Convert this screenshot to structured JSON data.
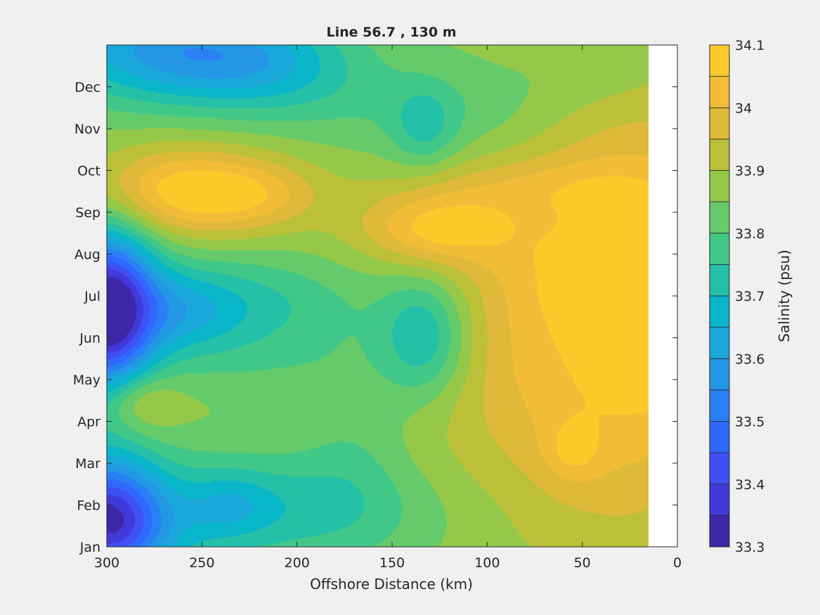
{
  "chart_data": {
    "type": "heatmap",
    "subtype": "filled-contour",
    "title": "Line 56.7 , 130 m",
    "xlabel": "Offshore Distance (km)",
    "ylabel": "",
    "xlim": [
      300,
      0
    ],
    "x_direction": "reversed",
    "xticks": [
      300,
      250,
      200,
      150,
      100,
      50,
      0
    ],
    "xtick_labels": [
      "300",
      "250",
      "200",
      "150",
      "100",
      "50",
      "0"
    ],
    "ylim": [
      1,
      13
    ],
    "yticks": [
      1,
      2,
      3,
      4,
      5,
      6,
      7,
      8,
      9,
      10,
      11,
      12
    ],
    "ytick_labels": [
      "Jan",
      "Feb",
      "Mar",
      "Apr",
      "May",
      "Jun",
      "Jul",
      "Aug",
      "Sep",
      "Oct",
      "Nov",
      "Dec"
    ],
    "data_x_extent": [
      300,
      15
    ],
    "grid": false,
    "colorbar": {
      "label": "Salinity (psu)",
      "levels": [
        33.3,
        33.35,
        33.4,
        33.45,
        33.5,
        33.55,
        33.6,
        33.65,
        33.7,
        33.75,
        33.8,
        33.85,
        33.9,
        33.95,
        34.0,
        34.05,
        34.1
      ],
      "tick_values": [
        33.3,
        33.4,
        33.5,
        33.6,
        33.7,
        33.8,
        33.9,
        34.0,
        34.1
      ],
      "tick_labels": [
        "33.3",
        "33.4",
        "33.5",
        "33.6",
        "33.7",
        "33.8",
        "33.9",
        "34",
        "34.1"
      ],
      "colors": [
        "#3e26a8",
        "#4139d9",
        "#3f50f4",
        "#3068fe",
        "#2b7ff5",
        "#2396e5",
        "#1aa7d9",
        "#09b5c8",
        "#25c0a8",
        "#41c788",
        "#65cb6a",
        "#95c849",
        "#bcc039",
        "#deb93a",
        "#f2bc37",
        "#fbcb2c",
        "#f3e31e"
      ]
    },
    "field": {
      "base": 33.86,
      "features": [
        {
          "x": 300,
          "y": 6.6,
          "sx": 18,
          "sy": 1.5,
          "amp": -0.5
        },
        {
          "x": 258,
          "y": 6.7,
          "sx": 55,
          "sy": 0.85,
          "amp": -0.18
        },
        {
          "x": 255,
          "y": 6.6,
          "sx": 15,
          "sy": 0.6,
          "amp": -0.05
        },
        {
          "x": 300,
          "y": 1.7,
          "sx": 20,
          "sy": 1.0,
          "amp": -0.4
        },
        {
          "x": 235,
          "y": 1.9,
          "sx": 70,
          "sy": 0.95,
          "amp": -0.16
        },
        {
          "x": 235,
          "y": 2.0,
          "sx": 15,
          "sy": 0.5,
          "amp": -0.07
        },
        {
          "x": 290,
          "y": 1.0,
          "sx": 30,
          "sy": 0.6,
          "amp": -0.06
        },
        {
          "x": 270,
          "y": 12.9,
          "sx": 45,
          "sy": 0.9,
          "amp": -0.26
        },
        {
          "x": 215,
          "y": 12.5,
          "sx": 35,
          "sy": 0.8,
          "amp": -0.14
        },
        {
          "x": 285,
          "y": 4.5,
          "sx": 15,
          "sy": 0.55,
          "amp": 0.13
        },
        {
          "x": 260,
          "y": 9.5,
          "sx": 38,
          "sy": 0.75,
          "amp": 0.22
        },
        {
          "x": 222,
          "y": 9.4,
          "sx": 25,
          "sy": 0.55,
          "amp": 0.08
        },
        {
          "x": 133,
          "y": 6.0,
          "sx": 16,
          "sy": 1.0,
          "amp": -0.17
        },
        {
          "x": 133,
          "y": 11.0,
          "sx": 12,
          "sy": 0.7,
          "amp": -0.1
        },
        {
          "x": 120,
          "y": 11.5,
          "sx": 55,
          "sy": 0.8,
          "amp": -0.06
        },
        {
          "x": 170,
          "y": 3.6,
          "sx": 20,
          "sy": 1.6,
          "amp": -0.05
        },
        {
          "x": 220,
          "y": 5.3,
          "sx": 40,
          "sy": 0.5,
          "amp": -0.03
        },
        {
          "x": 25,
          "y": 7.0,
          "sx": 45,
          "sy": 3.5,
          "amp": 0.21
        },
        {
          "x": 40,
          "y": 7.5,
          "sx": 35,
          "sy": 0.9,
          "amp": 0.05
        },
        {
          "x": 15,
          "y": 5.3,
          "sx": 12,
          "sy": 0.6,
          "amp": 0.06
        },
        {
          "x": 130,
          "y": 8.6,
          "sx": 28,
          "sy": 0.6,
          "amp": 0.16
        },
        {
          "x": 110,
          "y": 8.7,
          "sx": 30,
          "sy": 1.0,
          "amp": 0.05
        },
        {
          "x": 55,
          "y": 3.3,
          "sx": 10,
          "sy": 0.5,
          "amp": 0.08
        },
        {
          "x": 80,
          "y": 3.5,
          "sx": 60,
          "sy": 2.0,
          "amp": 0.05
        },
        {
          "x": 40,
          "y": 12.5,
          "sx": 25,
          "sy": 0.6,
          "amp": -0.05
        },
        {
          "x": 70,
          "y": 9.6,
          "sx": 55,
          "sy": 0.5,
          "amp": 0.06
        },
        {
          "x": 90,
          "y": 6.2,
          "sx": 25,
          "sy": 1.6,
          "amp": 0.04
        }
      ]
    }
  }
}
